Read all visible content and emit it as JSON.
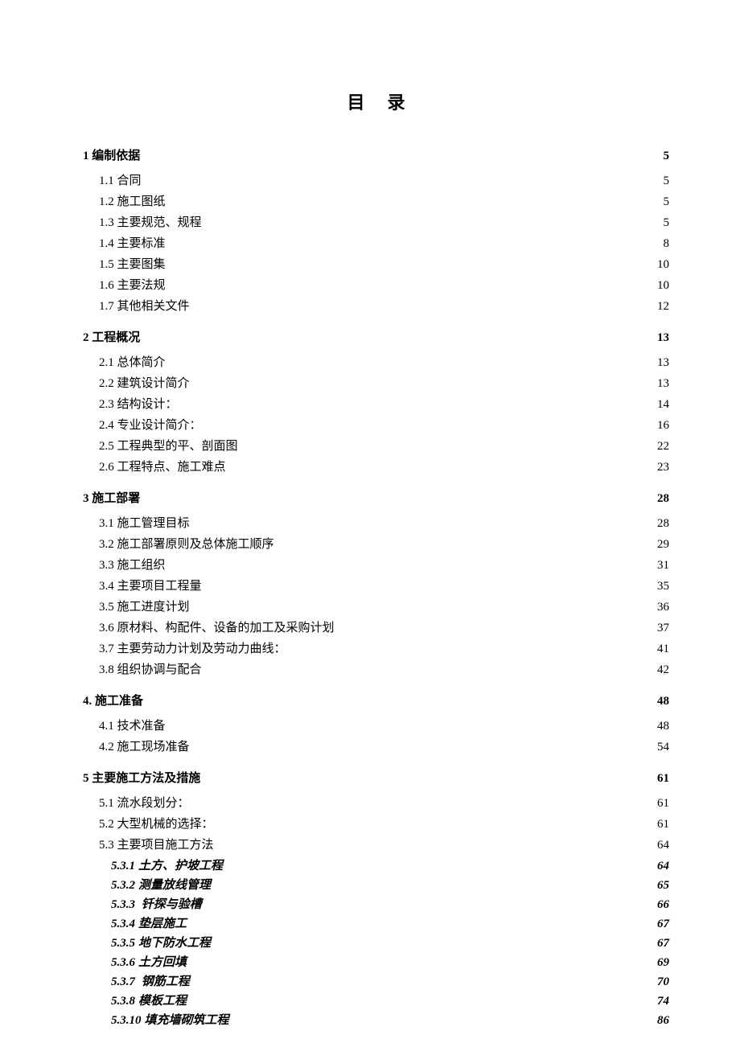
{
  "title": "目录",
  "sections": [
    {
      "label": "1 编制依据",
      "page": "5",
      "entries": [
        {
          "label": "1.1 合同",
          "page": "5"
        },
        {
          "label": "1.2 施工图纸",
          "page": "5"
        },
        {
          "label": "1.3 主要规范、规程",
          "page": "5"
        },
        {
          "label": "1.4 主要标准",
          "page": "8"
        },
        {
          "label": "1.5 主要图集",
          "page": "10"
        },
        {
          "label": "1.6 主要法规",
          "page": "10"
        },
        {
          "label": "1.7 其他相关文件",
          "page": "12"
        }
      ]
    },
    {
      "label": "2 工程概况",
      "page": "13",
      "entries": [
        {
          "label": "2.1 总体简介",
          "page": "13"
        },
        {
          "label": "2.2 建筑设计简介",
          "page": "13"
        },
        {
          "label": "2.3 结构设计：",
          "page": "14"
        },
        {
          "label": "2.4 专业设计简介：",
          "page": "16"
        },
        {
          "label": "2.5 工程典型的平、剖面图",
          "page": "22"
        },
        {
          "label": "2.6 工程特点、施工难点",
          "page": "23"
        }
      ]
    },
    {
      "label": "3 施工部署",
      "page": "28",
      "entries": [
        {
          "label": "3.1 施工管理目标",
          "page": "28"
        },
        {
          "label": "3.2 施工部署原则及总体施工顺序",
          "page": "29"
        },
        {
          "label": "3.3 施工组织",
          "page": "31"
        },
        {
          "label": "3.4 主要项目工程量",
          "page": "35"
        },
        {
          "label": "3.5  施工进度计划",
          "page": "36"
        },
        {
          "label": "3.6 原材料、构配件、设备的加工及采购计划",
          "page": "37"
        },
        {
          "label": "3.7 主要劳动力计划及劳动力曲线：",
          "page": "41"
        },
        {
          "label": "3.8 组织协调与配合",
          "page": "42"
        }
      ]
    },
    {
      "label": "4.  施工准备",
      "page": "48",
      "entries": [
        {
          "label": "4.1 技术准备",
          "page": "48"
        },
        {
          "label": "4.2 施工现场准备",
          "page": "54"
        }
      ]
    },
    {
      "label": "5    主要施工方法及措施",
      "page": "61",
      "entries": [
        {
          "label": "5.1 流水段划分：",
          "page": "61"
        },
        {
          "label": "5.2 大型机械的选择：",
          "page": "61"
        },
        {
          "label": "5.3 主要项目施工方法",
          "page": "64",
          "subs": [
            {
              "num": "5.3.1",
              "label": "土方、护坡工程",
              "page": "64"
            },
            {
              "num": "5.3.2",
              "label": "测量放线管理",
              "page": "65"
            },
            {
              "num": "5.3.3",
              "label": " 钎探与验槽",
              "page": "66"
            },
            {
              "num": "5.3.4",
              "label": "垫层施工",
              "page": "67"
            },
            {
              "num": "5.3.5",
              "label": "地下防水工程",
              "page": "67"
            },
            {
              "num": "5.3.6",
              "label": "土方回填",
              "page": "69"
            },
            {
              "num": "5.3.7",
              "label": " 钢筋工程",
              "page": "70"
            },
            {
              "num": "5.3.8",
              "label": "模板工程",
              "page": "74"
            },
            {
              "num": "5.3.10",
              "label": "填充墙砌筑工程",
              "page": "86"
            }
          ]
        }
      ]
    }
  ]
}
